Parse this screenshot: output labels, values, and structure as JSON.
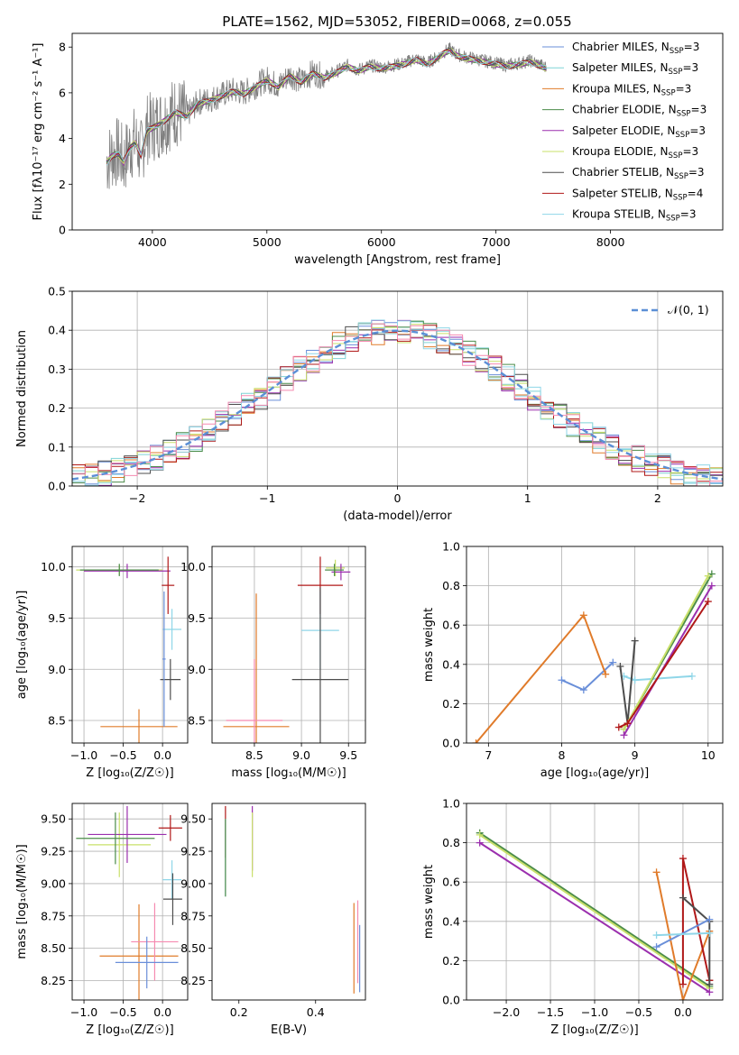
{
  "figure_title": "PLATE=1562, MJD=53052, FIBERID=0068, z=0.055",
  "model_colors": [
    "#6a8fd9",
    "#7fd3d6",
    "#e07b2a",
    "#4c8c4a",
    "#9b2fae",
    "#c9e06a",
    "#4d4d4d",
    "#b01818",
    "#8fd6e8"
  ],
  "chart_data": [
    {
      "id": "spectrum",
      "type": "line",
      "title": "PLATE=1562, MJD=53052, FIBERID=0068, z=0.055",
      "xlabel": "wavelength [Angstrom, rest frame]",
      "ylabel": "Flux [fλ10⁻¹⁷ erg cm⁻² s⁻¹ A⁻¹]",
      "xlim": [
        3300,
        8980
      ],
      "ylim": [
        0,
        8.6
      ],
      "xticks": [
        4000,
        5000,
        6000,
        7000,
        8000
      ],
      "yticks": [
        0,
        2,
        4,
        6,
        8
      ],
      "grid": false,
      "legend_position": "top-right",
      "data_color": "#808080",
      "data_x": [
        3600,
        3650,
        3700,
        3750,
        3800,
        3850,
        3900,
        3950,
        4000,
        4100,
        4200,
        4300,
        4400,
        4500,
        4600,
        4700,
        4800,
        4900,
        5000,
        5100,
        5200,
        5300,
        5400,
        5500,
        5600,
        5700,
        5800,
        5900,
        6000,
        6100,
        6200,
        6300,
        6400,
        6500,
        6550,
        6600,
        6650,
        6700,
        6800,
        6900,
        7000,
        7100,
        7200,
        7300,
        7400,
        7440
      ],
      "data_y": [
        3.0,
        3.3,
        3.4,
        3.0,
        3.6,
        3.9,
        3.3,
        4.4,
        4.5,
        4.8,
        5.2,
        5.0,
        5.6,
        5.7,
        5.9,
        6.1,
        6.0,
        6.3,
        6.6,
        6.3,
        6.8,
        6.5,
        6.9,
        6.7,
        6.9,
        7.2,
        7.0,
        7.2,
        7.1,
        7.2,
        7.3,
        7.5,
        7.3,
        7.6,
        7.8,
        7.9,
        7.7,
        7.6,
        7.5,
        7.4,
        7.3,
        7.2,
        7.3,
        7.4,
        7.2,
        7.1
      ],
      "series": [
        {
          "name": "Chabrier MILES, N_SSP=3",
          "nssp": "3",
          "color": "#6a8fd9"
        },
        {
          "name": "Salpeter MILES, N_SSP=3",
          "nssp": "3",
          "color": "#7fd3d6"
        },
        {
          "name": "Kroupa MILES, N_SSP=3",
          "nssp": "3",
          "color": "#e07b2a"
        },
        {
          "name": "Chabrier ELODIE, N_SSP=3",
          "nssp": "3",
          "color": "#4c8c4a"
        },
        {
          "name": "Salpeter ELODIE, N_SSP=3",
          "nssp": "3",
          "color": "#9b2fae"
        },
        {
          "name": "Kroupa ELODIE, N_SSP=3",
          "nssp": "3",
          "color": "#c9e06a"
        },
        {
          "name": "Chabrier STELIB, N_SSP=3",
          "nssp": "3",
          "color": "#4d4d4d"
        },
        {
          "name": "Salpeter STELIB, N_SSP=4",
          "nssp": "4",
          "color": "#b01818"
        },
        {
          "name": "Kroupa STELIB, N_SSP=3",
          "nssp": "3",
          "color": "#8fd6e8"
        }
      ],
      "legend_labels": [
        {
          "prefix": "Chabrier MILES, N",
          "sub": "SSP",
          "suffix": "=3"
        },
        {
          "prefix": "Salpeter MILES, N",
          "sub": "SSP",
          "suffix": "=3"
        },
        {
          "prefix": "Kroupa MILES, N",
          "sub": "SSP",
          "suffix": "=3"
        },
        {
          "prefix": "Chabrier ELODIE, N",
          "sub": "SSP",
          "suffix": "=3"
        },
        {
          "prefix": "Salpeter ELODIE, N",
          "sub": "SSP",
          "suffix": "=3"
        },
        {
          "prefix": "Kroupa ELODIE, N",
          "sub": "SSP",
          "suffix": "=3"
        },
        {
          "prefix": "Chabrier STELIB, N",
          "sub": "SSP",
          "suffix": "=3"
        },
        {
          "prefix": "Salpeter STELIB, N",
          "sub": "SSP",
          "suffix": "=4"
        },
        {
          "prefix": "Kroupa STELIB, N",
          "sub": "SSP",
          "suffix": "=3"
        }
      ]
    },
    {
      "id": "residuals",
      "type": "histogram",
      "xlabel": "(data-model)/error",
      "ylabel": "Normed distribution",
      "xlim": [
        -2.5,
        2.5
      ],
      "ylim": [
        0,
        0.5
      ],
      "xticks": [
        -2,
        -1,
        0,
        1,
        2
      ],
      "yticks": [
        0.0,
        0.1,
        0.2,
        0.3,
        0.4,
        0.5
      ],
      "grid": true,
      "legend_position": "top-right",
      "legend_label": "𝒩(0, 1)",
      "bin_width": 0.1,
      "normal_curve": {
        "mean": 0,
        "sigma": 1,
        "color": "#5b8fd6"
      }
    },
    {
      "id": "age-vs-Z",
      "type": "errorbar",
      "xlabel": "Z [log₁₀(Z/Z☉)]",
      "ylabel": "age  [log₁₀(age/yr)]",
      "xlim": [
        -1.15,
        0.32
      ],
      "ylim": [
        8.28,
        10.2
      ],
      "xticks": [
        -1.0,
        -0.5,
        0.0
      ],
      "yticks": [
        8.5,
        9.0,
        9.5,
        10.0
      ],
      "grid": true,
      "points": [
        {
          "x": -0.55,
          "xerr": 0.55,
          "y": 9.97,
          "yerr": 0.05,
          "color": "#c9e06a"
        },
        {
          "x": -0.45,
          "xerr": 0.55,
          "y": 9.96,
          "yerr": 0.07,
          "color": "#9b2fae"
        },
        {
          "x": -0.55,
          "xerr": 0.5,
          "y": 9.97,
          "yerr": 0.06,
          "color": "#4c8c4a"
        },
        {
          "x": 0.07,
          "xerr": 0.08,
          "y": 9.82,
          "yerr": 0.28,
          "color": "#b01818"
        },
        {
          "x": 0.12,
          "xerr": 0.12,
          "y": 9.39,
          "yerr": 0.2,
          "color": "#8fd6e8"
        },
        {
          "x": 0.1,
          "xerr": 0.13,
          "y": 8.9,
          "yerr": 0.2,
          "color": "#4d4d4d"
        },
        {
          "x": -0.3,
          "xerr": 0.49,
          "y": 8.44,
          "yerr": 0.17,
          "color": "#e07b2a"
        },
        {
          "x": 0.02,
          "xerr": 0.02,
          "y": 9.1,
          "yerr": 0.66,
          "color": "#6a8fd9"
        }
      ]
    },
    {
      "id": "age-vs-mass",
      "type": "errorbar",
      "xlabel": "mass [log₁₀(M/M☉)]",
      "ylabel": "",
      "xlim": [
        8.05,
        9.68
      ],
      "ylim": [
        8.28,
        10.2
      ],
      "xticks": [
        8.5,
        9.0,
        9.5
      ],
      "yticks": [
        8.5,
        9.0,
        9.5,
        10.0
      ],
      "grid": true,
      "points": [
        {
          "x": 9.36,
          "xerr": 0.1,
          "y": 9.99,
          "yerr": 0.08,
          "color": "#c9e06a"
        },
        {
          "x": 9.42,
          "xerr": 0.1,
          "y": 9.95,
          "yerr": 0.08,
          "color": "#9b2fae"
        },
        {
          "x": 9.35,
          "xerr": 0.1,
          "y": 9.97,
          "yerr": 0.06,
          "color": "#4c8c4a"
        },
        {
          "x": 9.2,
          "xerr": 0.24,
          "y": 9.82,
          "yerr": 0.28,
          "color": "#b01818"
        },
        {
          "x": 9.2,
          "xerr": 0.2,
          "y": 9.38,
          "yerr": 0.38,
          "color": "#8fd6e8"
        },
        {
          "x": 9.2,
          "xerr": 0.3,
          "y": 8.9,
          "yerr": 0.9,
          "color": "#4d4d4d"
        },
        {
          "x": 8.52,
          "xerr": 0.35,
          "y": 8.44,
          "yerr": 1.3,
          "color": "#e07b2a"
        },
        {
          "x": 8.5,
          "xerr": 0.3,
          "y": 8.5,
          "yerr": 0.6,
          "color": "#f58ab0"
        }
      ]
    },
    {
      "id": "massweight-vs-age",
      "type": "line",
      "xlabel": "age  [log₁₀(age/yr)]",
      "ylabel": "mass weight",
      "xlim": [
        6.7,
        10.2
      ],
      "ylim": [
        0,
        1
      ],
      "xticks": [
        7,
        8,
        9,
        10
      ],
      "yticks": [
        0.0,
        0.2,
        0.4,
        0.6,
        0.8,
        1.0
      ],
      "grid": true,
      "series": [
        {
          "name": "Chabrier MILES",
          "color": "#6a8fd9",
          "x": [
            8.0,
            8.3,
            8.7
          ],
          "y": [
            0.32,
            0.27,
            0.41
          ]
        },
        {
          "name": "Kroupa MILES",
          "color": "#e07b2a",
          "x": [
            6.83,
            8.3,
            8.6
          ],
          "y": [
            0.0,
            0.65,
            0.35
          ]
        },
        {
          "name": "Kroupa STELIB",
          "color": "#8fd6e8",
          "x": [
            8.85,
            9.0,
            9.78
          ],
          "y": [
            0.34,
            0.32,
            0.34
          ]
        },
        {
          "name": "Chabrier STELIB",
          "color": "#4d4d4d",
          "x": [
            8.8,
            8.9,
            9.0
          ],
          "y": [
            0.39,
            0.1,
            0.52
          ]
        },
        {
          "name": "Chabrier ELODIE",
          "color": "#4c8c4a",
          "x": [
            8.85,
            10.05
          ],
          "y": [
            0.07,
            0.86
          ]
        },
        {
          "name": "Kroupa ELODIE",
          "color": "#c9e06a",
          "x": [
            8.85,
            10.0
          ],
          "y": [
            0.07,
            0.85
          ]
        },
        {
          "name": "Salpeter ELODIE",
          "color": "#9b2fae",
          "x": [
            8.85,
            10.05
          ],
          "y": [
            0.04,
            0.8
          ]
        },
        {
          "name": "Salpeter STELIB",
          "color": "#b01818",
          "x": [
            8.78,
            8.9,
            10.0
          ],
          "y": [
            0.08,
            0.1,
            0.72
          ]
        }
      ]
    },
    {
      "id": "mass-vs-Z",
      "type": "errorbar",
      "xlabel": "Z [log₁₀(Z/Z☉)]",
      "ylabel": "mass [log₁₀(M/M☉)]",
      "xlim": [
        -1.15,
        0.32
      ],
      "ylim": [
        8.1,
        9.62
      ],
      "xticks": [
        -1.0,
        -0.5,
        0.0
      ],
      "yticks": [
        8.25,
        8.5,
        8.75,
        9.0,
        9.25,
        9.5
      ],
      "grid": true,
      "points": [
        {
          "x": -0.55,
          "xerr": 0.4,
          "y": 9.3,
          "yerr": 0.25,
          "color": "#c9e06a"
        },
        {
          "x": -0.45,
          "xerr": 0.5,
          "y": 9.38,
          "yerr": 0.22,
          "color": "#9b2fae"
        },
        {
          "x": -0.6,
          "xerr": 0.5,
          "y": 9.35,
          "yerr": 0.2,
          "color": "#4c8c4a"
        },
        {
          "x": 0.1,
          "xerr": 0.15,
          "y": 9.43,
          "yerr": 0.1,
          "color": "#b01818"
        },
        {
          "x": 0.12,
          "xerr": 0.12,
          "y": 9.03,
          "yerr": 0.15,
          "color": "#8fd6e8"
        },
        {
          "x": 0.13,
          "xerr": 0.12,
          "y": 8.88,
          "yerr": 0.2,
          "color": "#4d4d4d"
        },
        {
          "x": -0.3,
          "xerr": 0.5,
          "y": 8.44,
          "yerr": 0.4,
          "color": "#e07b2a"
        },
        {
          "x": -0.1,
          "xerr": 0.3,
          "y": 8.55,
          "yerr": 0.3,
          "color": "#f58ab0"
        },
        {
          "x": -0.2,
          "xerr": 0.4,
          "y": 8.39,
          "yerr": 0.2,
          "color": "#6a8fd9"
        }
      ]
    },
    {
      "id": "mass-vs-ebv",
      "type": "errorbar",
      "xlabel": "E(B-V)",
      "ylabel": "",
      "xlim": [
        0.13,
        0.53
      ],
      "ylim": [
        8.1,
        9.62
      ],
      "xticks": [
        0.2,
        0.4
      ],
      "yticks": [
        8.25,
        8.5,
        8.75,
        9.0,
        9.25,
        9.5
      ],
      "grid": false,
      "points": [
        {
          "x": 0.165,
          "xerr": 0.0,
          "y": 9.4,
          "yerr": 0.2,
          "color": "#b01818"
        },
        {
          "x": 0.165,
          "xerr": 0.0,
          "y": 9.2,
          "yerr": 0.3,
          "color": "#8fd6e8"
        },
        {
          "x": 0.165,
          "xerr": 0.0,
          "y": 9.2,
          "yerr": 0.3,
          "color": "#4c8c4a"
        },
        {
          "x": 0.235,
          "xerr": 0.0,
          "y": 9.35,
          "yerr": 0.25,
          "color": "#9b2fae"
        },
        {
          "x": 0.235,
          "xerr": 0.0,
          "y": 9.3,
          "yerr": 0.25,
          "color": "#c9e06a"
        },
        {
          "x": 0.5,
          "xerr": 0.0,
          "y": 8.5,
          "yerr": 0.35,
          "color": "#e07b2a"
        },
        {
          "x": 0.51,
          "xerr": 0.0,
          "y": 8.55,
          "yerr": 0.32,
          "color": "#f58ab0"
        },
        {
          "x": 0.515,
          "xerr": 0.0,
          "y": 8.42,
          "yerr": 0.26,
          "color": "#6a8fd9"
        }
      ]
    },
    {
      "id": "massweight-vs-Z",
      "type": "line",
      "xlabel": "Z [log₁₀(Z/Z☉)]",
      "ylabel": "mass weight",
      "xlim": [
        -2.45,
        0.45
      ],
      "ylim": [
        0,
        1
      ],
      "xticks": [
        -2.0,
        -1.5,
        -1.0,
        -0.5,
        0.0
      ],
      "yticks": [
        0.0,
        0.2,
        0.4,
        0.6,
        0.8,
        1.0
      ],
      "grid": true,
      "series": [
        {
          "name": "Chabrier ELODIE",
          "color": "#4c8c4a",
          "x": [
            -2.3,
            0.3
          ],
          "y": [
            0.85,
            0.07
          ]
        },
        {
          "name": "Kroupa ELODIE",
          "color": "#c9e06a",
          "x": [
            -2.3,
            0.3
          ],
          "y": [
            0.84,
            0.06
          ]
        },
        {
          "name": "Salpeter ELODIE",
          "color": "#9b2fae",
          "x": [
            -2.3,
            0.3
          ],
          "y": [
            0.8,
            0.04
          ]
        },
        {
          "name": "Kroupa MILES",
          "color": "#e07b2a",
          "x": [
            -0.3,
            0.0,
            0.3
          ],
          "y": [
            0.65,
            0.0,
            0.35
          ]
        },
        {
          "name": "Salpeter STELIB",
          "color": "#b01818",
          "x": [
            0.0,
            0.0,
            0.3,
            0.3
          ],
          "y": [
            0.08,
            0.72,
            0.1,
            0.1
          ]
        },
        {
          "name": "Chabrier STELIB",
          "color": "#4d4d4d",
          "x": [
            0.0,
            0.3,
            0.3
          ],
          "y": [
            0.52,
            0.4,
            0.08
          ]
        },
        {
          "name": "Chabrier MILES",
          "color": "#6a8fd9",
          "x": [
            -0.3,
            0.3
          ],
          "y": [
            0.27,
            0.41
          ]
        },
        {
          "name": "Kroupa STELIB",
          "color": "#8fd6e8",
          "x": [
            -0.3,
            0.3
          ],
          "y": [
            0.33,
            0.34
          ]
        }
      ]
    }
  ]
}
